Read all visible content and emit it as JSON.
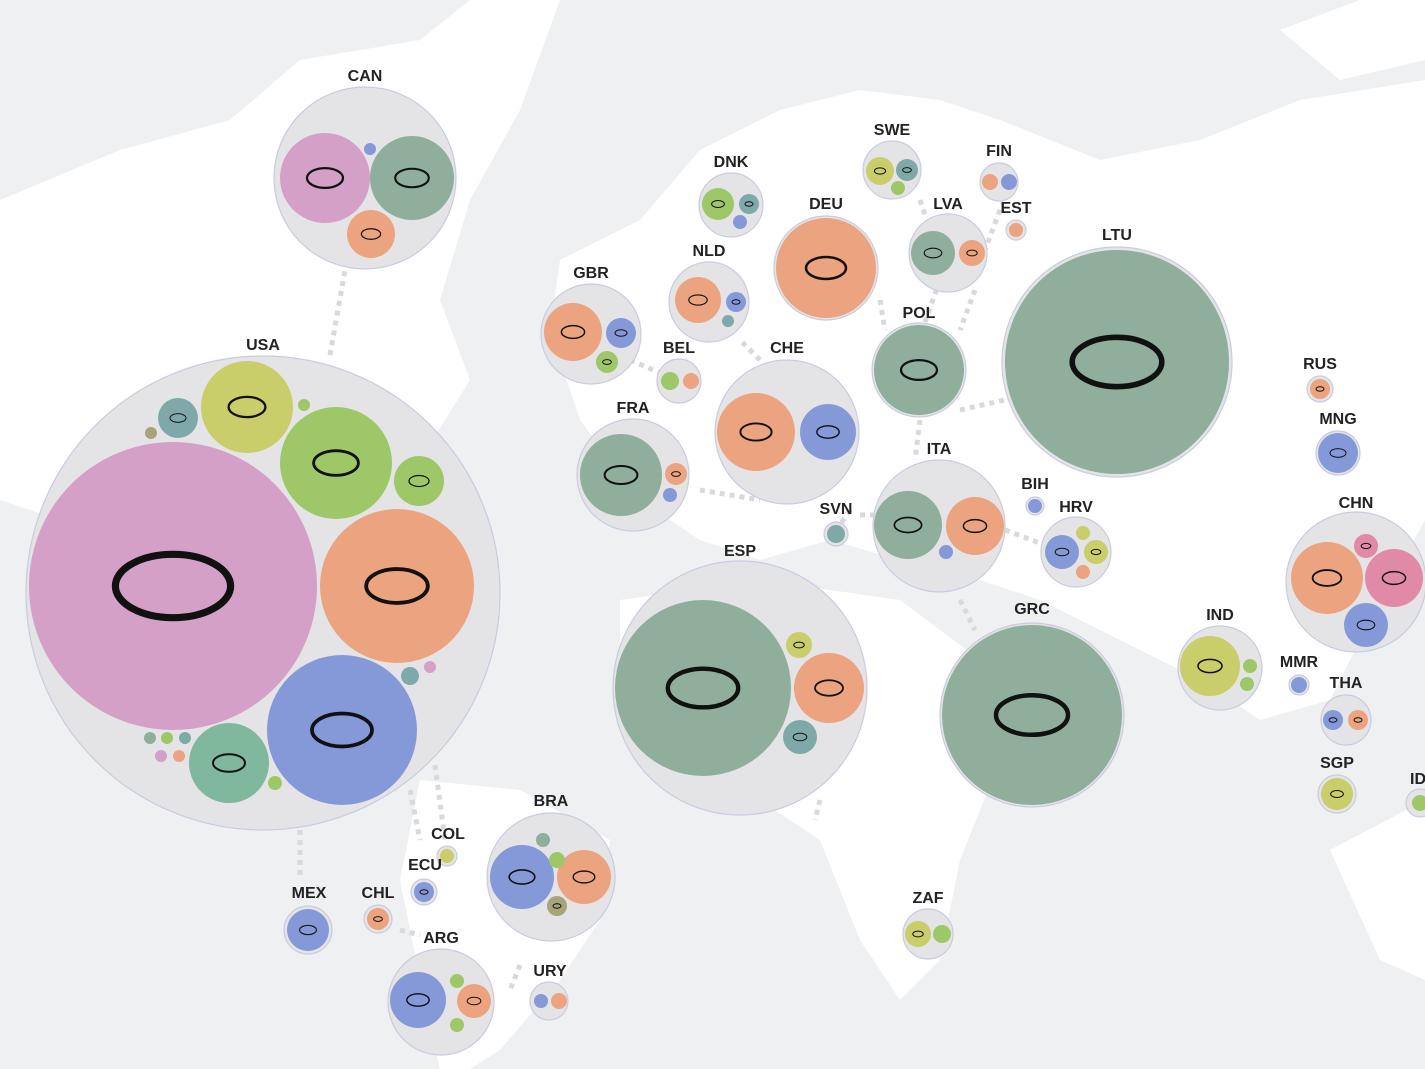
{
  "countries": [
    {
      "code": "CAN"
    },
    {
      "code": "USA"
    },
    {
      "code": "BRA"
    },
    {
      "code": "COL"
    },
    {
      "code": "ECU"
    },
    {
      "code": "MEX"
    },
    {
      "code": "CHL"
    },
    {
      "code": "ARG"
    },
    {
      "code": "URY"
    },
    {
      "code": "GBR"
    },
    {
      "code": "DNK"
    },
    {
      "code": "NLD"
    },
    {
      "code": "BEL"
    },
    {
      "code": "FRA"
    },
    {
      "code": "CHE"
    },
    {
      "code": "DEU"
    },
    {
      "code": "SWE"
    },
    {
      "code": "FIN"
    },
    {
      "code": "EST"
    },
    {
      "code": "LVA"
    },
    {
      "code": "POL"
    },
    {
      "code": "LTU"
    },
    {
      "code": "SVN"
    },
    {
      "code": "ITA"
    },
    {
      "code": "BIH"
    },
    {
      "code": "HRV"
    },
    {
      "code": "ESP"
    },
    {
      "code": "GRC"
    },
    {
      "code": "ZAF"
    },
    {
      "code": "IND"
    },
    {
      "code": "MMR"
    },
    {
      "code": "THA"
    },
    {
      "code": "SGP"
    },
    {
      "code": "ID"
    },
    {
      "code": "RUS"
    },
    {
      "code": "MNG"
    },
    {
      "code": "CHN"
    }
  ]
}
